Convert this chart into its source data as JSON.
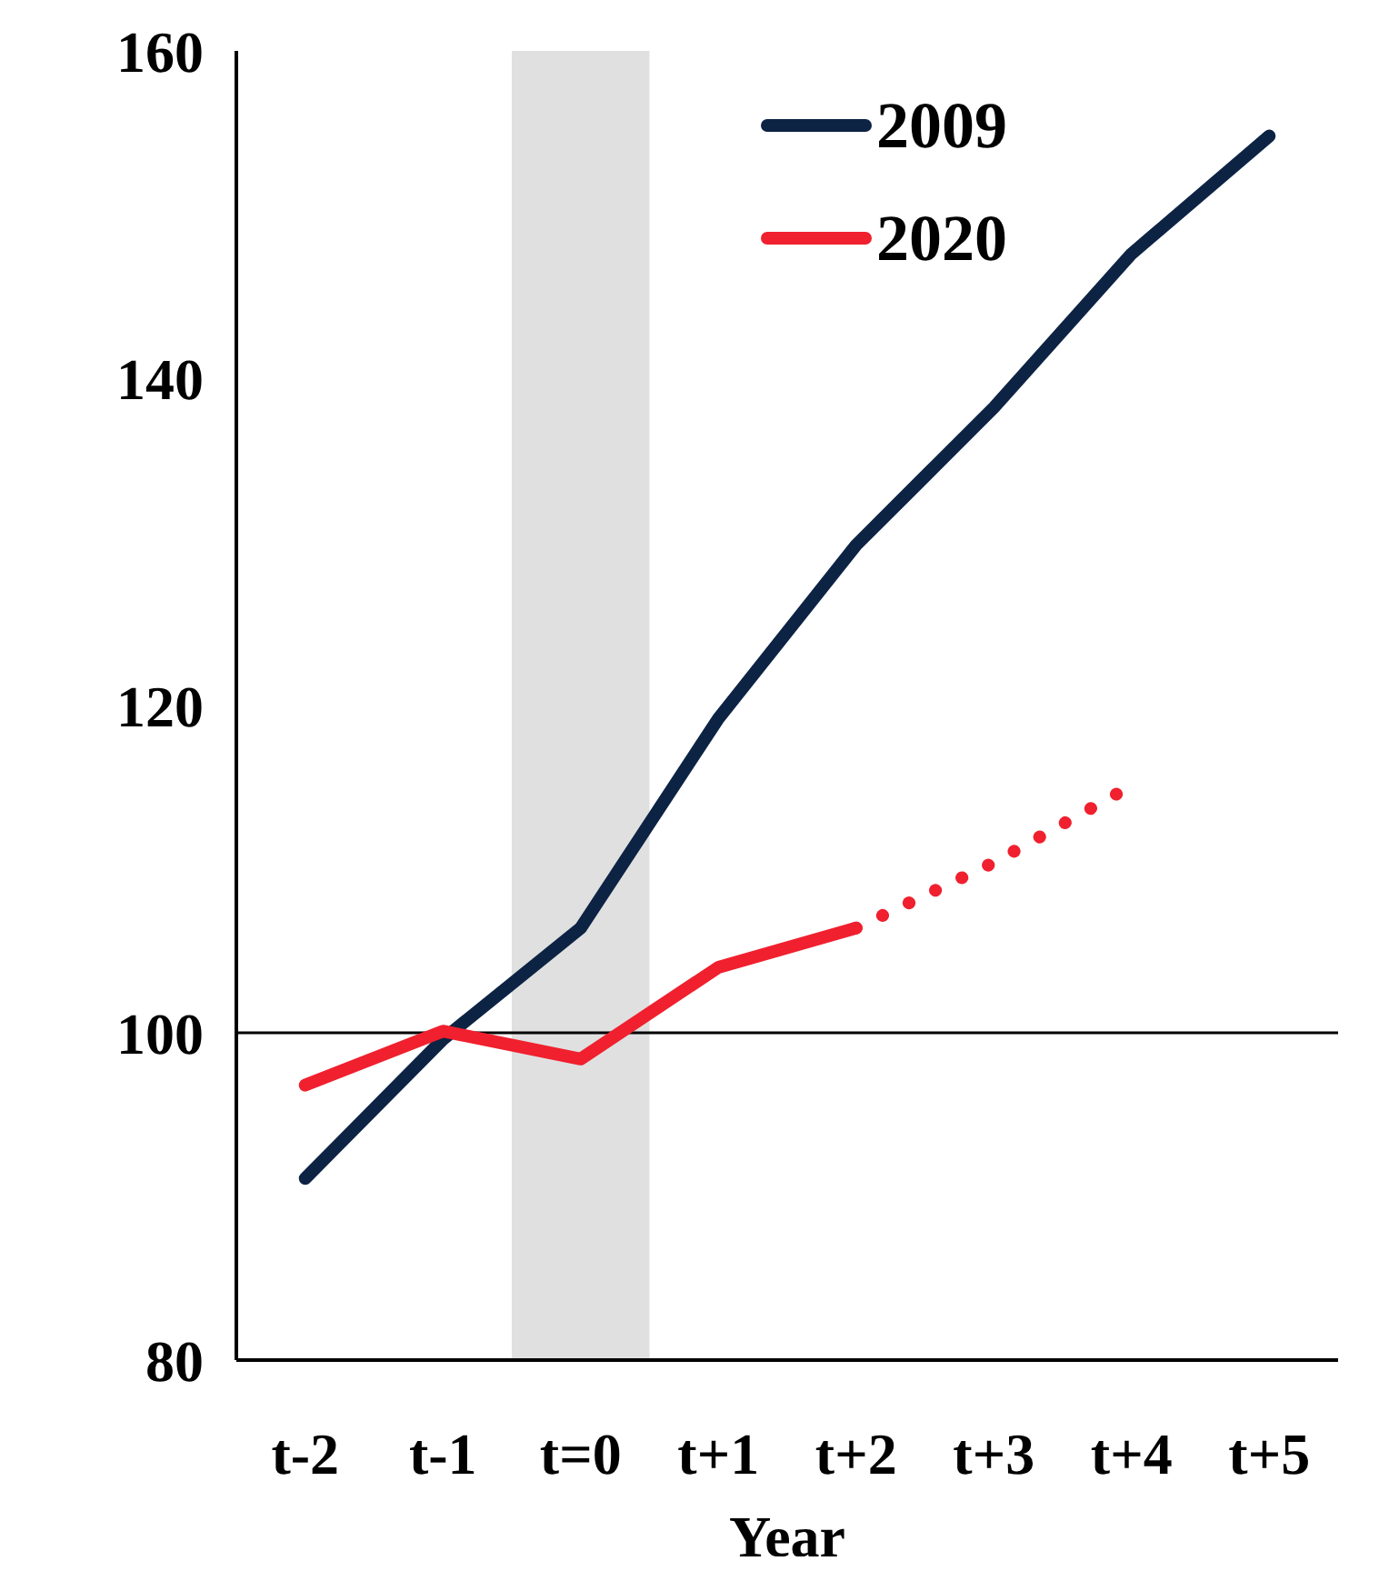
{
  "chart_data": {
    "type": "line",
    "categories": [
      "t-2",
      "t-1",
      "t=0",
      "t+1",
      "t+2",
      "t+3",
      "t+4",
      "t+5"
    ],
    "xlabel": "Year",
    "ylim": [
      80,
      160
    ],
    "yticks": [
      80,
      100,
      120,
      140,
      160
    ],
    "grid": false,
    "legend": "top right",
    "marker": "none",
    "series": [
      {
        "name": "2009",
        "color": "#0d2344",
        "values": [
          91.1,
          99.6,
          106.4,
          119.2,
          129.8,
          138.2,
          147.6,
          154.8
        ]
      },
      {
        "name": "2020",
        "color": "#f0202e",
        "values": [
          96.8,
          100.1,
          98.4,
          104,
          106.4,
          null,
          null,
          null
        ]
      },
      {
        "color": "#f0202e",
        "line_style": "dotted",
        "values": [
          null,
          null,
          null,
          null,
          106.4,
          110.4,
          115.1,
          null
        ]
      }
    ],
    "ref_lines": [
      {
        "axis": "y",
        "value": 100,
        "color": "#000000"
      }
    ],
    "bands": [
      {
        "axis": "x",
        "from": "t=0",
        "to": "t=0",
        "color": "#e0e0e0"
      }
    ]
  }
}
